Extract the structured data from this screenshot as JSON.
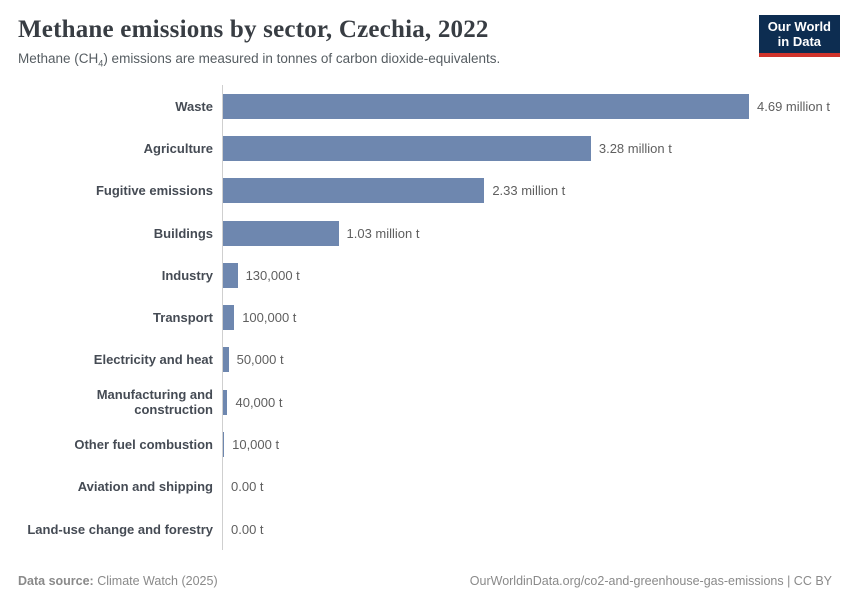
{
  "header": {
    "title": "Methane emissions by sector, Czechia, 2022",
    "subtitle": {
      "prefix": "Methane (CH",
      "sub": "4",
      "suffix": ") emissions are measured in tonnes of carbon dioxide-equivalents."
    },
    "logo": {
      "line1": "Our World",
      "line2": "in Data"
    }
  },
  "chart_data": {
    "type": "bar",
    "orientation": "horizontal",
    "title": "Methane emissions by sector, Czechia, 2022",
    "unit": "tonnes of carbon dioxide-equivalents",
    "xlim": [
      0,
      4690000
    ],
    "grid": false,
    "categories": [
      "Waste",
      "Agriculture",
      "Fugitive emissions",
      "Buildings",
      "Industry",
      "Transport",
      "Electricity and heat",
      "Manufacturing and construction",
      "Other fuel combustion",
      "Aviation and shipping",
      "Land-use change and forestry"
    ],
    "values": [
      4690000,
      3280000,
      2330000,
      1030000,
      130000,
      100000,
      50000,
      40000,
      10000,
      0,
      0
    ],
    "value_labels": [
      "4.69 million t",
      "3.28 million t",
      "2.33 million t",
      "1.03 million t",
      "130,000 t",
      "100,000 t",
      "50,000 t",
      "40,000 t",
      "10,000 t",
      "0.00 t",
      "0.00 t"
    ]
  },
  "colors": {
    "bar": "#6e87af",
    "axis_line": "#cfcfcf",
    "logo_bg": "#0d2d51",
    "logo_accent": "#d0342c"
  },
  "footer": {
    "datasource_label": "Data source:",
    "datasource_value": " Climate Watch (2025)",
    "attribution": "OurWorldinData.org/co2-and-greenhouse-gas-emissions | CC BY"
  }
}
